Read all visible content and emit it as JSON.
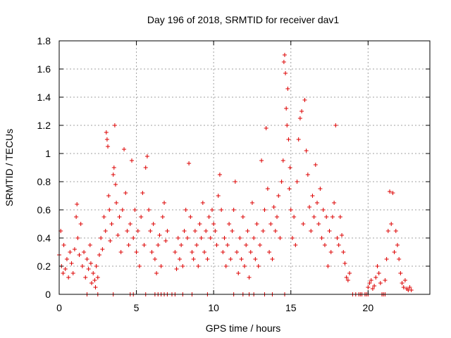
{
  "chart_data": {
    "type": "scatter",
    "title": "Day 196 of 2018, SRMTID for receiver dav1",
    "xlabel": "GPS time / hours",
    "ylabel": "SRMTID / TECUs",
    "xlim": [
      0,
      24
    ],
    "ylim": [
      0,
      1.8
    ],
    "x_ticks": [
      0,
      5,
      10,
      15,
      20
    ],
    "x_tick_labels": [
      "0",
      "5",
      "10",
      "15",
      "20"
    ],
    "y_ticks": [
      0,
      0.2,
      0.4,
      0.6,
      0.8,
      1.0,
      1.2,
      1.4,
      1.6,
      1.8
    ],
    "y_tick_labels": [
      "0",
      "0.2",
      "0.4",
      "0.6",
      "0.8",
      "1",
      "1.2",
      "1.4",
      "1.6",
      "1.8"
    ],
    "grid": true,
    "marker": "+",
    "color": "#dd0000",
    "series": [
      {
        "name": "dav1",
        "points": [
          [
            0.0,
            0.28
          ],
          [
            0.1,
            0.45
          ],
          [
            0.15,
            0.2
          ],
          [
            0.25,
            0.15
          ],
          [
            0.3,
            0.35
          ],
          [
            0.4,
            0.18
          ],
          [
            0.5,
            0.25
          ],
          [
            0.6,
            0.12
          ],
          [
            0.7,
            0.3
          ],
          [
            0.8,
            0.22
          ],
          [
            0.9,
            0.15
          ],
          [
            1.0,
            0.32
          ],
          [
            1.1,
            0.55
          ],
          [
            1.15,
            0.64
          ],
          [
            1.2,
            0.4
          ],
          [
            1.3,
            0.28
          ],
          [
            1.4,
            0.5
          ],
          [
            1.5,
            0.2
          ],
          [
            1.6,
            0.3
          ],
          [
            1.7,
            0.12
          ],
          [
            1.8,
            0.25
          ],
          [
            1.9,
            0.18
          ],
          [
            2.0,
            0.35
          ],
          [
            2.05,
            0.22
          ],
          [
            2.1,
            0.08
          ],
          [
            2.2,
            0.15
          ],
          [
            2.3,
            0.1
          ],
          [
            2.35,
            0.05
          ],
          [
            2.4,
            0.2
          ],
          [
            2.5,
            0.12
          ],
          [
            2.6,
            0.28
          ],
          [
            2.7,
            0.4
          ],
          [
            2.8,
            0.32
          ],
          [
            2.9,
            0.55
          ],
          [
            3.0,
            0.45
          ],
          [
            3.05,
            1.15
          ],
          [
            3.1,
            1.1
          ],
          [
            3.15,
            1.05
          ],
          [
            3.2,
            0.7
          ],
          [
            3.25,
            0.6
          ],
          [
            3.3,
            0.38
          ],
          [
            3.4,
            0.5
          ],
          [
            3.5,
            0.85
          ],
          [
            3.55,
            0.9
          ],
          [
            3.6,
            1.2
          ],
          [
            3.65,
            0.78
          ],
          [
            3.7,
            0.65
          ],
          [
            3.8,
            0.42
          ],
          [
            3.9,
            0.55
          ],
          [
            4.0,
            0.3
          ],
          [
            4.1,
            0.6
          ],
          [
            4.2,
            1.03
          ],
          [
            4.3,
            0.72
          ],
          [
            4.4,
            0.45
          ],
          [
            4.5,
            0.35
          ],
          [
            4.6,
            0.5
          ],
          [
            4.7,
            0.95
          ],
          [
            4.8,
            0.4
          ],
          [
            4.9,
            0.6
          ],
          [
            5.0,
            0.3
          ],
          [
            5.1,
            0.45
          ],
          [
            5.2,
            0.2
          ],
          [
            5.3,
            0.55
          ],
          [
            5.4,
            0.72
          ],
          [
            5.5,
            0.35
          ],
          [
            5.6,
            0.9
          ],
          [
            5.7,
            0.98
          ],
          [
            5.8,
            0.6
          ],
          [
            5.9,
            0.45
          ],
          [
            6.0,
            0.3
          ],
          [
            6.1,
            0.5
          ],
          [
            6.2,
            0.25
          ],
          [
            6.3,
            0.15
          ],
          [
            6.4,
            0.35
          ],
          [
            6.5,
            0.42
          ],
          [
            6.6,
            0.2
          ],
          [
            6.7,
            0.55
          ],
          [
            6.8,
            0.65
          ],
          [
            6.9,
            0.38
          ],
          [
            7.0,
            0.45
          ],
          [
            7.5,
            0.3
          ],
          [
            7.6,
            0.18
          ],
          [
            7.7,
            0.4
          ],
          [
            7.8,
            0.25
          ],
          [
            7.9,
            0.35
          ],
          [
            8.0,
            0.2
          ],
          [
            8.1,
            0.45
          ],
          [
            8.2,
            0.6
          ],
          [
            8.3,
            0.4
          ],
          [
            8.4,
            0.93
          ],
          [
            8.5,
            0.55
          ],
          [
            8.6,
            0.3
          ],
          [
            8.7,
            0.25
          ],
          [
            8.8,
            0.45
          ],
          [
            8.9,
            0.35
          ],
          [
            9.0,
            0.2
          ],
          [
            9.1,
            0.5
          ],
          [
            9.2,
            0.4
          ],
          [
            9.3,
            0.65
          ],
          [
            9.4,
            0.3
          ],
          [
            9.5,
            0.45
          ],
          [
            9.6,
            0.25
          ],
          [
            9.7,
            0.55
          ],
          [
            9.8,
            0.4
          ],
          [
            9.9,
            0.6
          ],
          [
            10.0,
            0.5
          ],
          [
            10.1,
            0.45
          ],
          [
            10.2,
            0.35
          ],
          [
            10.3,
            0.7
          ],
          [
            10.4,
            0.85
          ],
          [
            10.5,
            0.6
          ],
          [
            10.6,
            0.3
          ],
          [
            10.7,
            0.4
          ],
          [
            10.8,
            0.2
          ],
          [
            10.9,
            0.35
          ],
          [
            11.0,
            0.5
          ],
          [
            11.1,
            0.25
          ],
          [
            11.2,
            0.45
          ],
          [
            11.3,
            0.6
          ],
          [
            11.4,
            0.8
          ],
          [
            11.5,
            0.3
          ],
          [
            11.6,
            0.15
          ],
          [
            11.7,
            0.4
          ],
          [
            11.8,
            0.25
          ],
          [
            11.9,
            0.55
          ],
          [
            12.0,
            0.2
          ],
          [
            12.1,
            0.35
          ],
          [
            12.2,
            0.45
          ],
          [
            12.3,
            0.12
          ],
          [
            12.4,
            0.3
          ],
          [
            12.5,
            0.65
          ],
          [
            12.6,
            0.4
          ],
          [
            12.7,
            0.25
          ],
          [
            12.8,
            0.5
          ],
          [
            12.9,
            0.2
          ],
          [
            13.0,
            0.35
          ],
          [
            13.1,
            0.95
          ],
          [
            13.2,
            0.45
          ],
          [
            13.3,
            0.6
          ],
          [
            13.4,
            1.18
          ],
          [
            13.5,
            0.75
          ],
          [
            13.6,
            0.3
          ],
          [
            13.7,
            0.5
          ],
          [
            13.8,
            0.25
          ],
          [
            13.9,
            0.62
          ],
          [
            14.0,
            0.45
          ],
          [
            14.1,
            0.55
          ],
          [
            14.2,
            0.7
          ],
          [
            14.3,
            0.4
          ],
          [
            14.4,
            0.8
          ],
          [
            14.5,
            0.95
          ],
          [
            14.55,
            1.65
          ],
          [
            14.6,
            1.7
          ],
          [
            14.65,
            1.57
          ],
          [
            14.7,
            1.32
          ],
          [
            14.75,
            1.2
          ],
          [
            14.8,
            1.46
          ],
          [
            14.85,
            1.1
          ],
          [
            14.9,
            0.75
          ],
          [
            14.95,
            0.9
          ],
          [
            15.0,
            0.6
          ],
          [
            15.1,
            0.4
          ],
          [
            15.2,
            0.55
          ],
          [
            15.3,
            0.35
          ],
          [
            15.4,
            0.8
          ],
          [
            15.5,
            1.1
          ],
          [
            15.6,
            1.25
          ],
          [
            15.7,
            1.3
          ],
          [
            15.8,
            0.5
          ],
          [
            15.9,
            1.38
          ],
          [
            16.0,
            1.02
          ],
          [
            16.1,
            0.85
          ],
          [
            16.2,
            0.62
          ],
          [
            16.3,
            0.45
          ],
          [
            16.4,
            0.7
          ],
          [
            16.5,
            0.55
          ],
          [
            16.6,
            0.92
          ],
          [
            16.7,
            0.65
          ],
          [
            16.8,
            0.5
          ],
          [
            16.9,
            0.75
          ],
          [
            17.0,
            0.4
          ],
          [
            17.1,
            0.6
          ],
          [
            17.2,
            0.35
          ],
          [
            17.3,
            0.55
          ],
          [
            17.4,
            0.2
          ],
          [
            17.5,
            0.45
          ],
          [
            17.6,
            0.3
          ],
          [
            17.7,
            0.55
          ],
          [
            17.8,
            0.65
          ],
          [
            17.9,
            1.2
          ],
          [
            18.0,
            0.4
          ],
          [
            18.1,
            0.35
          ],
          [
            18.2,
            0.55
          ],
          [
            18.3,
            0.42
          ],
          [
            18.4,
            0.3
          ],
          [
            18.5,
            0.22
          ],
          [
            18.6,
            0.12
          ],
          [
            18.7,
            0.1
          ],
          [
            18.8,
            0.15
          ],
          [
            19.0,
            0.0
          ],
          [
            19.5,
            0.0
          ],
          [
            19.9,
            0.0
          ],
          [
            20.0,
            0.05
          ],
          [
            20.1,
            0.08
          ],
          [
            20.2,
            0.1
          ],
          [
            20.3,
            0.04
          ],
          [
            20.4,
            0.06
          ],
          [
            20.5,
            0.12
          ],
          [
            20.6,
            0.2
          ],
          [
            20.7,
            0.15
          ],
          [
            20.8,
            0.08
          ],
          [
            20.9,
            0.0
          ],
          [
            21.0,
            0.0
          ],
          [
            21.1,
            0.1
          ],
          [
            21.2,
            0.25
          ],
          [
            21.3,
            0.45
          ],
          [
            21.4,
            0.73
          ],
          [
            21.5,
            0.5
          ],
          [
            21.6,
            0.72
          ],
          [
            21.7,
            0.3
          ],
          [
            21.8,
            0.45
          ],
          [
            21.9,
            0.35
          ],
          [
            22.0,
            0.25
          ],
          [
            22.1,
            0.15
          ],
          [
            22.2,
            0.08
          ],
          [
            22.3,
            0.05
          ],
          [
            22.4,
            0.1
          ],
          [
            22.5,
            0.04
          ],
          [
            22.6,
            0.03
          ],
          [
            22.7,
            0.05
          ],
          [
            22.8,
            0.03
          ],
          [
            1.8,
            0.0
          ],
          [
            2.5,
            0.0
          ],
          [
            3.5,
            0.0
          ],
          [
            4.6,
            0.0
          ],
          [
            4.8,
            0.0
          ],
          [
            5.6,
            0.0
          ],
          [
            6.2,
            0.0
          ],
          [
            6.4,
            0.0
          ],
          [
            6.6,
            0.0
          ],
          [
            6.8,
            0.0
          ],
          [
            7.0,
            0.0
          ],
          [
            7.3,
            0.0
          ],
          [
            7.5,
            0.0
          ],
          [
            8.0,
            0.0
          ],
          [
            8.6,
            0.0
          ],
          [
            9.6,
            0.0
          ],
          [
            11.3,
            0.0
          ],
          [
            11.9,
            0.0
          ],
          [
            12.3,
            0.0
          ],
          [
            12.6,
            0.0
          ],
          [
            13.3,
            0.0
          ],
          [
            13.8,
            0.0
          ],
          [
            14.6,
            0.0
          ],
          [
            19.2,
            0.0
          ],
          [
            19.4,
            0.0
          ],
          [
            19.6,
            0.0
          ],
          [
            19.8,
            0.0
          ],
          [
            20.0,
            0.0
          ],
          [
            20.9,
            0.0
          ],
          [
            21.1,
            0.0
          ]
        ]
      }
    ]
  }
}
